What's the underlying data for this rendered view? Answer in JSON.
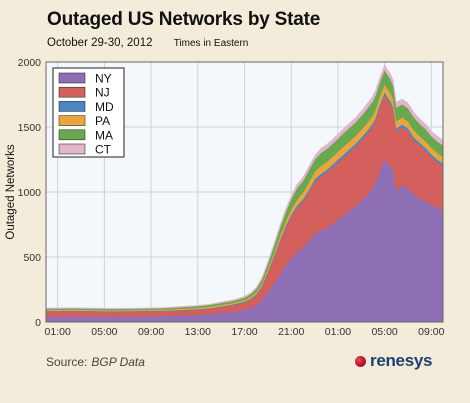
{
  "title": "Outaged US Networks by State",
  "subtitle": "October 29-30, 2012",
  "timezone_note": "Times in Eastern",
  "source": {
    "label": "Source:",
    "value": "BGP Data"
  },
  "brand": {
    "name": "renesys",
    "color": "#1e3f73"
  },
  "chart_data": {
    "type": "area",
    "stacked": true,
    "ylabel": "Outaged Networks",
    "ylim": [
      0,
      2000
    ],
    "y_ticks": [
      0,
      500,
      1000,
      1500,
      2000
    ],
    "xlim": [
      0,
      34
    ],
    "x_tick_positions": [
      1,
      5,
      9,
      13,
      17,
      21,
      25,
      29,
      33
    ],
    "x_tick_labels": [
      "01:00",
      "05:00",
      "09:00",
      "13:00",
      "17:00",
      "21:00",
      "01:00",
      "05:00",
      "09:00"
    ],
    "grid": true,
    "legend_position": "top-left",
    "x": [
      0,
      2,
      4,
      6,
      8,
      10,
      12,
      13,
      14,
      15,
      16,
      17,
      17.5,
      18,
      18.5,
      19,
      19.5,
      20,
      20.5,
      21,
      21.5,
      22,
      22.5,
      23,
      23.5,
      24,
      24.5,
      25,
      25.5,
      26,
      26.5,
      27,
      27.5,
      28,
      28.25,
      28.5,
      28.75,
      29,
      29.25,
      29.5,
      29.75,
      30,
      30.5,
      31,
      31.5,
      32,
      32.5,
      33,
      33.5,
      34
    ],
    "series": [
      {
        "name": "NY",
        "color": "#8e6fb5",
        "values": [
          40,
          42,
          40,
          40,
          42,
          45,
          50,
          55,
          60,
          70,
          80,
          95,
          110,
          130,
          170,
          230,
          290,
          360,
          430,
          490,
          540,
          570,
          620,
          680,
          700,
          720,
          750,
          790,
          820,
          860,
          890,
          930,
          980,
          1030,
          1080,
          1140,
          1200,
          1250,
          1220,
          1200,
          1160,
          1010,
          1050,
          1030,
          980,
          950,
          930,
          900,
          880,
          860
        ]
      },
      {
        "name": "NJ",
        "color": "#d4605e",
        "values": [
          40,
          40,
          40,
          38,
          38,
          38,
          40,
          40,
          42,
          45,
          50,
          55,
          60,
          75,
          100,
          150,
          200,
          250,
          290,
          320,
          340,
          360,
          380,
          400,
          420,
          430,
          440,
          440,
          450,
          450,
          460,
          470,
          470,
          480,
          480,
          490,
          490,
          500,
          490,
          480,
          470,
          460,
          450,
          440,
          420,
          410,
          390,
          370,
          350,
          340
        ]
      },
      {
        "name": "MD",
        "color": "#4a86c4",
        "values": [
          5,
          5,
          5,
          5,
          5,
          5,
          5,
          5,
          5,
          5,
          5,
          8,
          8,
          10,
          10,
          10,
          12,
          12,
          15,
          15,
          15,
          15,
          15,
          18,
          18,
          18,
          18,
          20,
          20,
          20,
          20,
          20,
          20,
          20,
          20,
          20,
          20,
          20,
          20,
          20,
          20,
          20,
          20,
          20,
          20,
          20,
          20,
          20,
          20,
          20
        ]
      },
      {
        "name": "PA",
        "color": "#e8a63f",
        "values": [
          8,
          8,
          8,
          8,
          8,
          8,
          10,
          10,
          10,
          12,
          12,
          12,
          15,
          15,
          18,
          20,
          25,
          30,
          35,
          40,
          45,
          50,
          55,
          55,
          60,
          60,
          60,
          60,
          60,
          60,
          60,
          60,
          60,
          60,
          60,
          60,
          60,
          60,
          60,
          60,
          60,
          55,
          55,
          55,
          55,
          50,
          50,
          50,
          50,
          50
        ]
      },
      {
        "name": "MA",
        "color": "#6aa84f",
        "values": [
          10,
          10,
          10,
          10,
          10,
          10,
          12,
          12,
          15,
          15,
          15,
          18,
          20,
          25,
          30,
          40,
          50,
          60,
          70,
          80,
          90,
          90,
          95,
          95,
          100,
          100,
          100,
          100,
          105,
          105,
          105,
          105,
          110,
          110,
          110,
          110,
          110,
          110,
          110,
          110,
          105,
          105,
          100,
          100,
          100,
          95,
          95,
          90,
          90,
          90
        ]
      },
      {
        "name": "CT",
        "color": "#e3b5cd",
        "values": [
          5,
          5,
          5,
          5,
          5,
          5,
          5,
          5,
          5,
          8,
          8,
          10,
          10,
          12,
          15,
          15,
          20,
          20,
          25,
          25,
          30,
          30,
          30,
          30,
          35,
          35,
          35,
          35,
          35,
          35,
          35,
          40,
          40,
          40,
          40,
          40,
          40,
          40,
          40,
          40,
          40,
          40,
          40,
          40,
          40,
          40,
          40,
          40,
          40,
          40
        ]
      }
    ]
  }
}
